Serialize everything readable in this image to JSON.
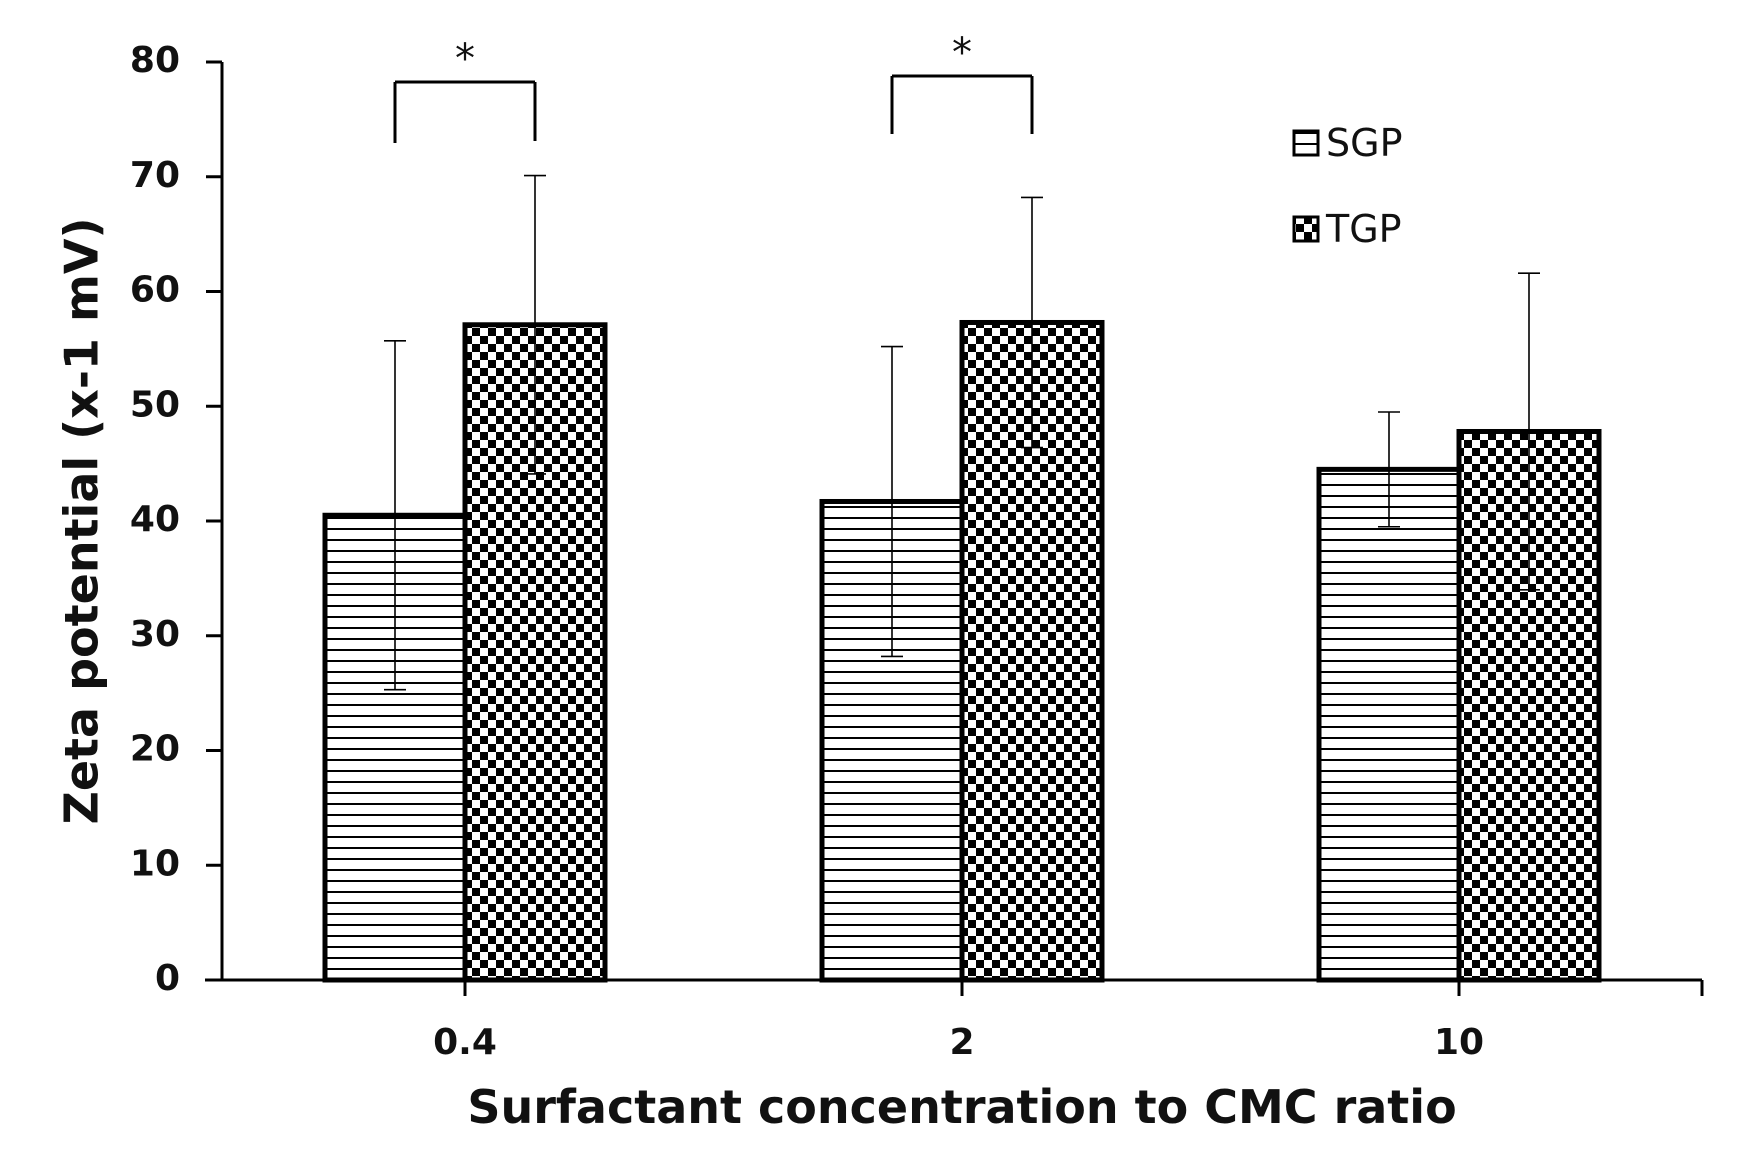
{
  "chart_data": {
    "type": "bar",
    "title": "",
    "xlabel": "Surfactant concentration to CMC ratio",
    "ylabel": "Zeta potential (x-1 mV)",
    "categories": [
      "0.4",
      "2",
      "10"
    ],
    "ylim": [
      0,
      80
    ],
    "yticks": [
      0,
      10,
      20,
      30,
      40,
      50,
      60,
      70,
      80
    ],
    "grid": false,
    "legend_position": "top-right",
    "series": [
      {
        "name": "SGP",
        "pattern": "horizontal-stripes",
        "values": [
          40.5,
          41.7,
          44.5
        ],
        "errors": [
          15.2,
          13.5,
          5.0
        ]
      },
      {
        "name": "TGP",
        "pattern": "checkerboard",
        "values": [
          57.1,
          57.3,
          47.8
        ],
        "errors": [
          13.0,
          10.9,
          13.8
        ]
      }
    ],
    "annotations": [
      {
        "label": "*",
        "category": "0.4",
        "between": [
          "SGP",
          "TGP"
        ]
      },
      {
        "label": "*",
        "category": "2",
        "between": [
          "SGP",
          "TGP"
        ]
      }
    ],
    "colors": {
      "stroke": "#000000",
      "fill": "#ffffff"
    }
  }
}
